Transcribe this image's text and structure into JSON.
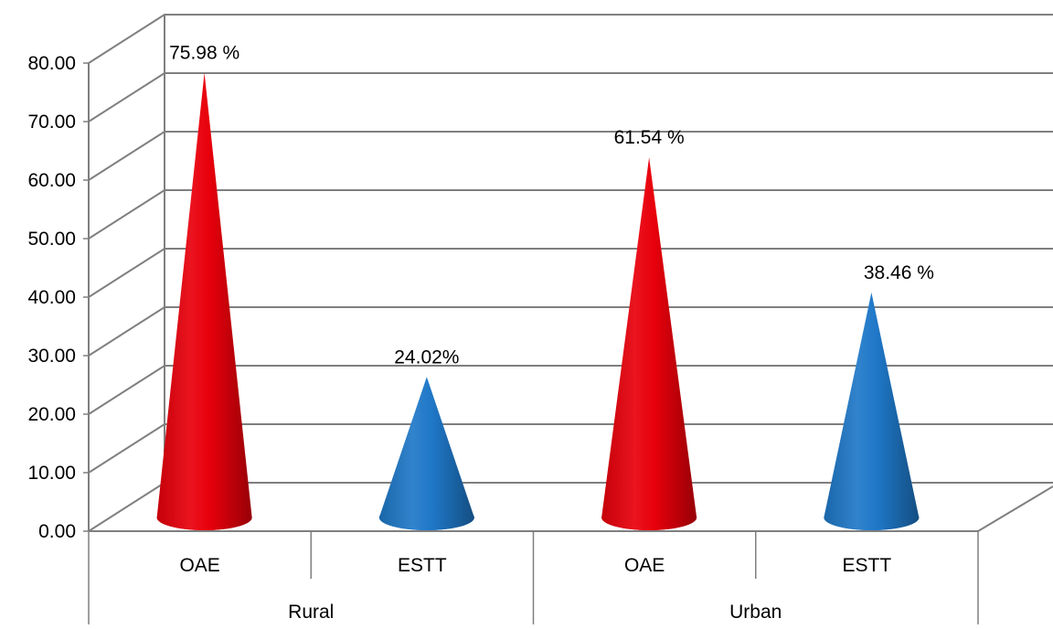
{
  "chart_data": {
    "type": "bar",
    "style": "3d-cone",
    "groups": [
      {
        "name": "Rural",
        "categories": [
          "OAE",
          "ESTT"
        ]
      },
      {
        "name": "Urban",
        "categories": [
          "OAE",
          "ESTT"
        ]
      }
    ],
    "bars": [
      {
        "group": "Rural",
        "category": "OAE",
        "value": 75.98,
        "label": "75.98 %",
        "color": "#e8000b"
      },
      {
        "group": "Rural",
        "category": "ESTT",
        "value": 24.02,
        "label": "24.02%",
        "color": "#1f78c8"
      },
      {
        "group": "Urban",
        "category": "OAE",
        "value": 61.54,
        "label": "61.54 %",
        "color": "#e8000b"
      },
      {
        "group": "Urban",
        "category": "ESTT",
        "value": 38.46,
        "label": "38.46 %",
        "color": "#1f78c8"
      }
    ],
    "yticks": [
      "0.00",
      "10.00",
      "20.00",
      "30.00",
      "40.00",
      "50.00",
      "60.00",
      "70.00",
      "80.00"
    ],
    "ylim": [
      0,
      80
    ],
    "title": "",
    "xlabel": "",
    "ylabel": "",
    "grid": true,
    "legend": "none",
    "colors": {
      "oae": "#e8000b",
      "estt": "#1f78c8",
      "gridline": "#7f7f7f"
    }
  }
}
